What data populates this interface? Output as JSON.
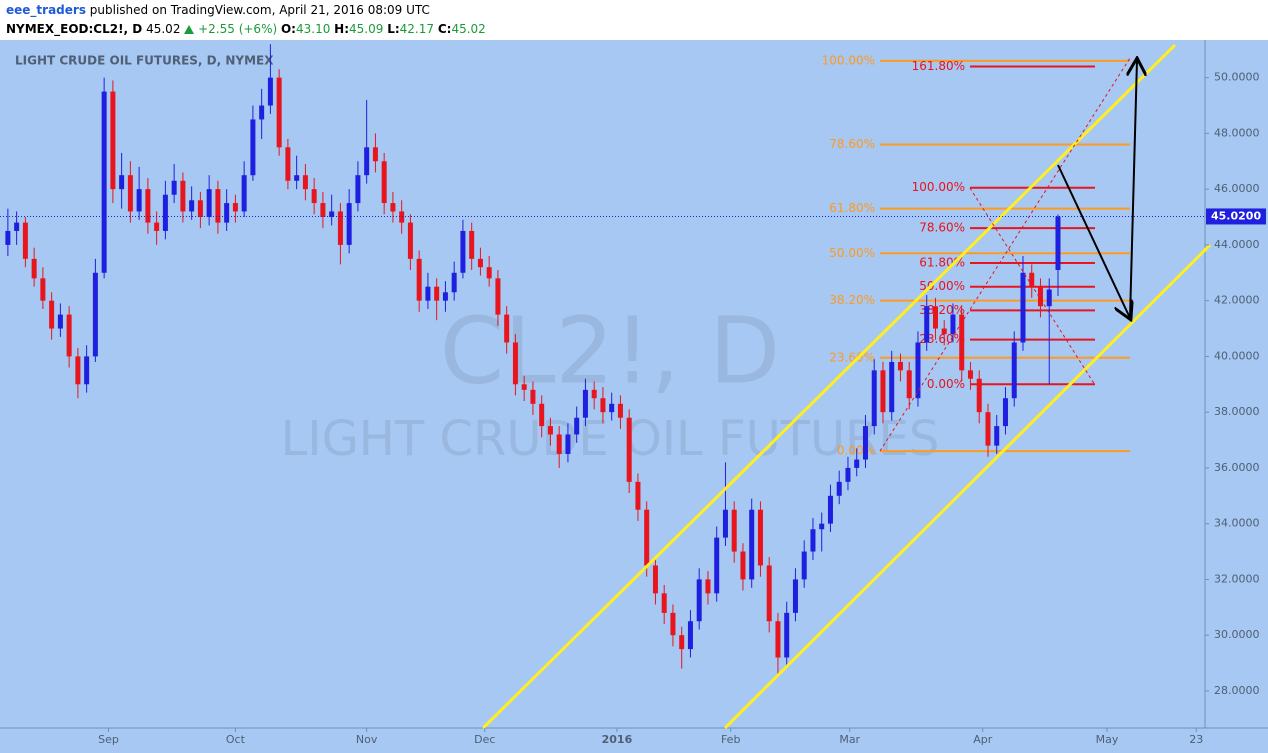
{
  "header": {
    "user": "eee_traders",
    "published": "published on TradingView.com, April 21, 2016 08:09 UTC",
    "symbol": "NYMEX_EOD:CL2!, D",
    "last": "45.02",
    "change": "+2.55 (+6%)",
    "ohlc": [
      {
        "label": "O:",
        "value": "43.10"
      },
      {
        "label": "H:",
        "value": "45.09"
      },
      {
        "label": "L:",
        "value": "42.17"
      },
      {
        "label": "C:",
        "value": "45.02"
      }
    ]
  },
  "chart_data": {
    "type": "candlestick",
    "title": "LIGHT CRUDE OIL FUTURES, D, NYMEX",
    "watermark": {
      "symbol": "CL2!, D",
      "name": "LIGHT CRUDE OIL FUTURES"
    },
    "up_color": "#1f1fe0",
    "down_color": "#e8141e",
    "candles": [
      [
        44.0,
        45.3,
        43.6,
        44.5
      ],
      [
        44.5,
        45.2,
        44.0,
        44.8
      ],
      [
        44.8,
        45.0,
        43.2,
        43.5
      ],
      [
        43.5,
        43.9,
        42.5,
        42.8
      ],
      [
        42.8,
        43.2,
        41.7,
        42.0
      ],
      [
        42.0,
        42.3,
        40.6,
        41.0
      ],
      [
        41.0,
        41.9,
        40.7,
        41.5
      ],
      [
        41.5,
        41.8,
        39.6,
        40.0
      ],
      [
        40.0,
        40.3,
        38.5,
        39.0
      ],
      [
        39.0,
        40.4,
        38.7,
        40.0
      ],
      [
        40.0,
        43.5,
        39.8,
        43.0
      ],
      [
        43.0,
        50.0,
        42.8,
        49.5
      ],
      [
        49.5,
        49.9,
        45.5,
        46.0
      ],
      [
        46.0,
        47.3,
        45.3,
        46.5
      ],
      [
        46.5,
        47.0,
        44.8,
        45.2
      ],
      [
        45.2,
        46.8,
        44.9,
        46.0
      ],
      [
        46.0,
        46.4,
        44.4,
        44.8
      ],
      [
        44.8,
        45.2,
        44.0,
        44.5
      ],
      [
        44.5,
        46.3,
        44.2,
        45.8
      ],
      [
        45.8,
        46.9,
        45.5,
        46.3
      ],
      [
        46.3,
        46.6,
        44.8,
        45.2
      ],
      [
        45.2,
        46.1,
        44.9,
        45.6
      ],
      [
        45.6,
        45.9,
        44.6,
        45.0
      ],
      [
        45.0,
        46.5,
        44.7,
        46.0
      ],
      [
        46.0,
        46.3,
        44.4,
        44.8
      ],
      [
        44.8,
        46.0,
        44.5,
        45.5
      ],
      [
        45.5,
        45.8,
        44.8,
        45.2
      ],
      [
        45.2,
        47.0,
        45.0,
        46.5
      ],
      [
        46.5,
        49.0,
        46.3,
        48.5
      ],
      [
        48.5,
        49.6,
        47.8,
        49.0
      ],
      [
        49.0,
        51.2,
        48.7,
        50.0
      ],
      [
        50.0,
        50.3,
        47.2,
        47.5
      ],
      [
        47.5,
        47.8,
        46.0,
        46.3
      ],
      [
        46.3,
        47.2,
        46.0,
        46.5
      ],
      [
        46.5,
        46.9,
        45.6,
        46.0
      ],
      [
        46.0,
        46.4,
        45.1,
        45.5
      ],
      [
        45.5,
        45.9,
        44.6,
        45.0
      ],
      [
        45.0,
        45.8,
        44.7,
        45.2
      ],
      [
        45.2,
        45.5,
        43.3,
        44.0
      ],
      [
        44.0,
        46.0,
        43.7,
        45.5
      ],
      [
        45.5,
        47.0,
        45.2,
        46.5
      ],
      [
        46.5,
        49.2,
        46.2,
        47.5
      ],
      [
        47.5,
        48.0,
        46.6,
        47.0
      ],
      [
        47.0,
        47.3,
        45.1,
        45.5
      ],
      [
        45.5,
        45.9,
        44.8,
        45.2
      ],
      [
        45.2,
        45.6,
        44.4,
        44.8
      ],
      [
        44.8,
        45.1,
        43.1,
        43.5
      ],
      [
        43.5,
        43.8,
        41.6,
        42.0
      ],
      [
        42.0,
        43.0,
        41.7,
        42.5
      ],
      [
        42.5,
        42.8,
        41.3,
        42.0
      ],
      [
        42.0,
        42.7,
        41.6,
        42.3
      ],
      [
        42.3,
        43.4,
        42.0,
        43.0
      ],
      [
        43.0,
        44.9,
        42.8,
        44.5
      ],
      [
        44.5,
        44.8,
        43.1,
        43.5
      ],
      [
        43.5,
        43.9,
        42.9,
        43.2
      ],
      [
        43.2,
        43.6,
        42.5,
        42.8
      ],
      [
        42.8,
        43.1,
        41.1,
        41.5
      ],
      [
        41.5,
        41.8,
        40.1,
        40.5
      ],
      [
        40.5,
        40.8,
        38.6,
        39.0
      ],
      [
        39.0,
        39.3,
        38.4,
        38.8
      ],
      [
        38.8,
        39.1,
        37.9,
        38.3
      ],
      [
        38.3,
        38.6,
        37.1,
        37.5
      ],
      [
        37.5,
        37.8,
        36.8,
        37.2
      ],
      [
        37.2,
        37.5,
        36.0,
        36.5
      ],
      [
        36.5,
        37.6,
        36.2,
        37.2
      ],
      [
        37.2,
        38.2,
        36.9,
        37.8
      ],
      [
        37.8,
        39.2,
        37.5,
        38.8
      ],
      [
        38.8,
        39.1,
        38.1,
        38.5
      ],
      [
        38.5,
        38.9,
        37.6,
        38.0
      ],
      [
        38.0,
        38.7,
        37.7,
        38.3
      ],
      [
        38.3,
        38.6,
        37.4,
        37.8
      ],
      [
        37.8,
        38.1,
        35.1,
        35.5
      ],
      [
        35.5,
        35.8,
        34.1,
        34.5
      ],
      [
        34.5,
        34.8,
        32.1,
        32.5
      ],
      [
        32.5,
        32.8,
        31.1,
        31.5
      ],
      [
        31.5,
        31.8,
        30.4,
        30.8
      ],
      [
        30.8,
        31.1,
        29.6,
        30.0
      ],
      [
        30.0,
        30.3,
        28.8,
        29.5
      ],
      [
        29.5,
        30.9,
        29.2,
        30.5
      ],
      [
        30.5,
        32.4,
        30.2,
        32.0
      ],
      [
        32.0,
        32.3,
        31.1,
        31.5
      ],
      [
        31.5,
        33.9,
        31.2,
        33.5
      ],
      [
        33.5,
        36.2,
        33.2,
        34.5
      ],
      [
        34.5,
        34.8,
        32.6,
        33.0
      ],
      [
        33.0,
        33.3,
        31.6,
        32.0
      ],
      [
        32.0,
        34.9,
        31.7,
        34.5
      ],
      [
        34.5,
        34.8,
        32.1,
        32.5
      ],
      [
        32.5,
        32.8,
        30.1,
        30.5
      ],
      [
        30.5,
        30.8,
        28.6,
        29.2
      ],
      [
        29.2,
        31.2,
        28.9,
        30.8
      ],
      [
        30.8,
        32.4,
        30.5,
        32.0
      ],
      [
        32.0,
        33.4,
        31.7,
        33.0
      ],
      [
        33.0,
        34.2,
        32.7,
        33.8
      ],
      [
        33.8,
        34.4,
        33.0,
        34.0
      ],
      [
        34.0,
        35.4,
        33.7,
        35.0
      ],
      [
        35.0,
        35.9,
        34.7,
        35.5
      ],
      [
        35.5,
        36.4,
        35.2,
        36.0
      ],
      [
        36.0,
        36.7,
        35.7,
        36.3
      ],
      [
        36.3,
        37.9,
        36.0,
        37.5
      ],
      [
        37.5,
        39.9,
        37.2,
        39.5
      ],
      [
        39.5,
        39.8,
        37.6,
        38.0
      ],
      [
        38.0,
        40.2,
        37.7,
        39.8
      ],
      [
        39.8,
        40.1,
        39.1,
        39.5
      ],
      [
        39.5,
        39.8,
        38.1,
        38.5
      ],
      [
        38.5,
        40.9,
        38.2,
        40.5
      ],
      [
        40.5,
        42.2,
        40.2,
        41.8
      ],
      [
        41.8,
        42.1,
        40.6,
        41.0
      ],
      [
        41.0,
        41.3,
        40.4,
        40.8
      ],
      [
        40.8,
        41.9,
        40.5,
        41.5
      ],
      [
        41.5,
        41.8,
        39.1,
        39.5
      ],
      [
        39.5,
        39.8,
        38.8,
        39.2
      ],
      [
        39.2,
        39.5,
        37.6,
        38.0
      ],
      [
        38.0,
        38.3,
        36.4,
        36.8
      ],
      [
        36.8,
        37.9,
        36.5,
        37.5
      ],
      [
        37.5,
        38.9,
        37.2,
        38.5
      ],
      [
        38.5,
        40.9,
        38.2,
        40.5
      ],
      [
        40.5,
        43.6,
        40.2,
        43.0
      ],
      [
        43.0,
        43.3,
        42.1,
        42.5
      ],
      [
        42.5,
        42.8,
        41.4,
        41.8
      ],
      [
        41.8,
        42.8,
        39.0,
        42.4
      ],
      [
        43.1,
        45.09,
        42.17,
        45.02
      ]
    ],
    "xlim": [
      -0.9,
      136.8
    ],
    "ylim": [
      26.67,
      51.35
    ],
    "xticks": [
      {
        "value": 11.5,
        "label": "Sep"
      },
      {
        "value": 26,
        "label": "Oct"
      },
      {
        "value": 41,
        "label": "Nov"
      },
      {
        "value": 54.5,
        "label": "Dec"
      },
      {
        "value": 69.6,
        "label": "2016"
      },
      {
        "value": 82.6,
        "label": "Feb"
      },
      {
        "value": 96.2,
        "label": "Mar"
      },
      {
        "value": 111.4,
        "label": "Apr"
      },
      {
        "value": 125.6,
        "label": "May"
      },
      {
        "value": 135.8,
        "label": "23"
      }
    ],
    "yticks": [
      {
        "value": 28,
        "label": "28.0000"
      },
      {
        "value": 30,
        "label": "30.0000"
      },
      {
        "value": 32,
        "label": "32.0000"
      },
      {
        "value": 34,
        "label": "34.0000"
      },
      {
        "value": 36,
        "label": "36.0000"
      },
      {
        "value": 38,
        "label": "38.0000"
      },
      {
        "value": 40,
        "label": "40.0000"
      },
      {
        "value": 42,
        "label": "42.0000"
      },
      {
        "value": 44,
        "label": "44.0000"
      },
      {
        "value": 46,
        "label": "46.0000"
      },
      {
        "value": 48,
        "label": "48.0000"
      },
      {
        "value": 50,
        "label": "50.0000"
      }
    ],
    "last_price": {
      "value": 45.02,
      "label": "45.0200"
    },
    "fib_retracement": {
      "color": "#ff9a1f",
      "levels": [
        {
          "label": "0.00%",
          "value": 36.6
        },
        {
          "label": "23.60%",
          "value": 39.95
        },
        {
          "label": "38.20%",
          "value": 42.0
        },
        {
          "label": "50.00%",
          "value": 43.7
        },
        {
          "label": "61.80%",
          "value": 45.3
        },
        {
          "label": "78.60%",
          "value": 47.6
        },
        {
          "label": "100.00%",
          "value": 50.6
        }
      ]
    },
    "fib_extension": {
      "color": "#e8141e",
      "levels": [
        {
          "label": "0.00%",
          "value": 39.0
        },
        {
          "label": "23.60%",
          "value": 40.6
        },
        {
          "label": "38.20%",
          "value": 41.65
        },
        {
          "label": "50.00%",
          "value": 42.5
        },
        {
          "label": "61.80%",
          "value": 43.35
        },
        {
          "label": "78.60%",
          "value": 44.6
        },
        {
          "label": "100.00%",
          "value": 46.05
        },
        {
          "label": "161.80%",
          "value": 50.4
        }
      ]
    }
  }
}
